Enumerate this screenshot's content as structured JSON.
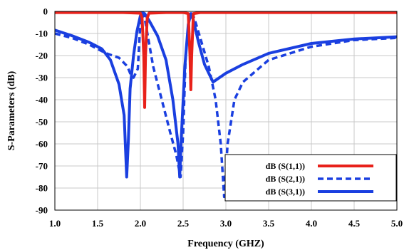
{
  "chart_data": {
    "type": "line",
    "title": "",
    "xlabel": "Frequency (GHZ)",
    "ylabel": "S-Parameters (dB)",
    "xlim": [
      1.0,
      5.0
    ],
    "ylim": [
      -90,
      0
    ],
    "x_ticks": [
      "1.0",
      "1.5",
      "2.0",
      "2.5",
      "3.0",
      "3.5",
      "4.0",
      "4.5",
      "5.0"
    ],
    "y_ticks": [
      "0",
      "-10",
      "-20",
      "-30",
      "-40",
      "-50",
      "-60",
      "-70",
      "-80",
      "-90"
    ],
    "grid": true,
    "legend_position": "bottom-right",
    "series": [
      {
        "name": "dB (S(1,1))",
        "color": "#e8211a",
        "style": "solid",
        "points": [
          [
            1.0,
            -0.5
          ],
          [
            1.8,
            -0.5
          ],
          [
            2.0,
            -0.8
          ],
          [
            2.02,
            -3
          ],
          [
            2.04,
            -20
          ],
          [
            2.05,
            -43.5
          ],
          [
            2.06,
            -20
          ],
          [
            2.08,
            -3
          ],
          [
            2.1,
            -0.8
          ],
          [
            2.3,
            -0.5
          ],
          [
            2.5,
            -0.5
          ],
          [
            2.56,
            -1
          ],
          [
            2.58,
            -20
          ],
          [
            2.59,
            -35.5
          ],
          [
            2.6,
            -20
          ],
          [
            2.62,
            -1
          ],
          [
            2.7,
            -0.5
          ],
          [
            3.5,
            -0.5
          ],
          [
            4.5,
            -0.5
          ],
          [
            5.0,
            -0.5
          ]
        ]
      },
      {
        "name": "dB (S(2,1))",
        "color": "#1a3fe0",
        "style": "dashed",
        "points": [
          [
            1.0,
            -10
          ],
          [
            1.2,
            -12
          ],
          [
            1.4,
            -15
          ],
          [
            1.6,
            -19
          ],
          [
            1.75,
            -21
          ],
          [
            1.85,
            -25
          ],
          [
            1.88,
            -28
          ],
          [
            1.92,
            -30
          ],
          [
            1.97,
            -26
          ],
          [
            2.0,
            -5
          ],
          [
            2.03,
            -1
          ],
          [
            2.05,
            -3
          ],
          [
            2.15,
            -25
          ],
          [
            2.25,
            -40
          ],
          [
            2.35,
            -55
          ],
          [
            2.42,
            -65
          ],
          [
            2.47,
            -75
          ],
          [
            2.5,
            -55
          ],
          [
            2.53,
            -20
          ],
          [
            2.57,
            -3
          ],
          [
            2.6,
            -1
          ],
          [
            2.63,
            -3
          ],
          [
            2.7,
            -12
          ],
          [
            2.8,
            -25
          ],
          [
            2.88,
            -40
          ],
          [
            2.94,
            -60
          ],
          [
            2.98,
            -84
          ],
          [
            3.02,
            -60
          ],
          [
            3.1,
            -40
          ],
          [
            3.2,
            -32
          ],
          [
            3.5,
            -22
          ],
          [
            4.0,
            -16
          ],
          [
            4.5,
            -13
          ],
          [
            5.0,
            -12
          ]
        ]
      },
      {
        "name": "dB (S(3,1))",
        "color": "#1a3fe0",
        "style": "solid",
        "points": [
          [
            1.0,
            -8.5
          ],
          [
            1.2,
            -11
          ],
          [
            1.4,
            -14
          ],
          [
            1.55,
            -17
          ],
          [
            1.65,
            -22
          ],
          [
            1.75,
            -33
          ],
          [
            1.81,
            -47
          ],
          [
            1.84,
            -75
          ],
          [
            1.86,
            -58
          ],
          [
            1.88,
            -35
          ],
          [
            1.92,
            -20
          ],
          [
            1.96,
            -9
          ],
          [
            2.0,
            -2
          ],
          [
            2.02,
            -0.5
          ],
          [
            2.05,
            -1
          ],
          [
            2.1,
            -4
          ],
          [
            2.2,
            -11
          ],
          [
            2.3,
            -22
          ],
          [
            2.38,
            -40
          ],
          [
            2.44,
            -60
          ],
          [
            2.46,
            -75
          ],
          [
            2.48,
            -56
          ],
          [
            2.52,
            -25
          ],
          [
            2.56,
            -6
          ],
          [
            2.59,
            -1
          ],
          [
            2.62,
            -4
          ],
          [
            2.68,
            -14
          ],
          [
            2.75,
            -24
          ],
          [
            2.85,
            -32
          ],
          [
            3.0,
            -28
          ],
          [
            3.2,
            -24
          ],
          [
            3.5,
            -19
          ],
          [
            4.0,
            -14.5
          ],
          [
            4.5,
            -12.5
          ],
          [
            5.0,
            -11.5
          ]
        ]
      }
    ]
  }
}
